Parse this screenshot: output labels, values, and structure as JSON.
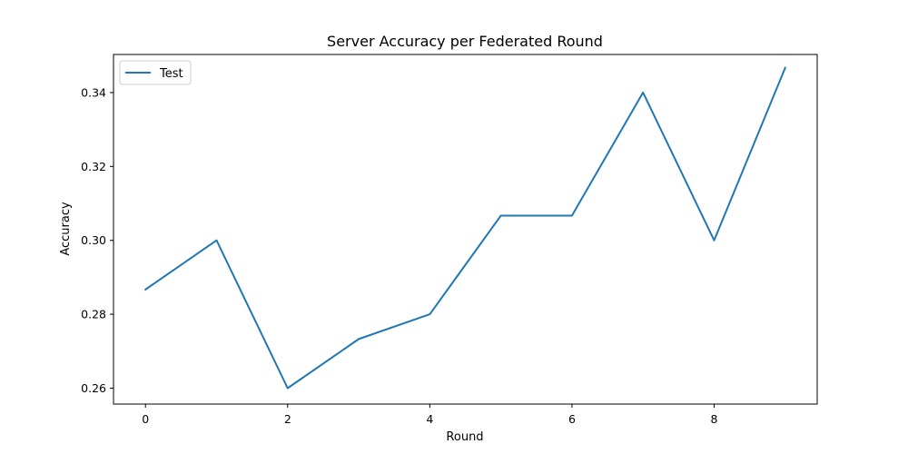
{
  "chart_data": {
    "type": "line",
    "title": "Server Accuracy per Federated Round",
    "xlabel": "Round",
    "ylabel": "Accuracy",
    "xlim": [
      -0.45,
      9.45
    ],
    "ylim": [
      0.2557,
      0.3503
    ],
    "xticks": [
      0,
      2,
      4,
      6,
      8
    ],
    "xtick_labels": [
      "0",
      "2",
      "4",
      "6",
      "8"
    ],
    "yticks": [
      0.26,
      0.28,
      0.3,
      0.32,
      0.34
    ],
    "ytick_labels": [
      "0.26",
      "0.28",
      "0.30",
      "0.32",
      "0.34"
    ],
    "grid": false,
    "legend_position": "top-left",
    "x": [
      0,
      1,
      2,
      3,
      4,
      5,
      6,
      7,
      8,
      9
    ],
    "series": [
      {
        "name": "Test",
        "color": "#1f77b4",
        "values": [
          0.2867,
          0.3,
          0.26,
          0.2733,
          0.28,
          0.3067,
          0.3067,
          0.34,
          0.3,
          0.3467
        ]
      }
    ]
  }
}
